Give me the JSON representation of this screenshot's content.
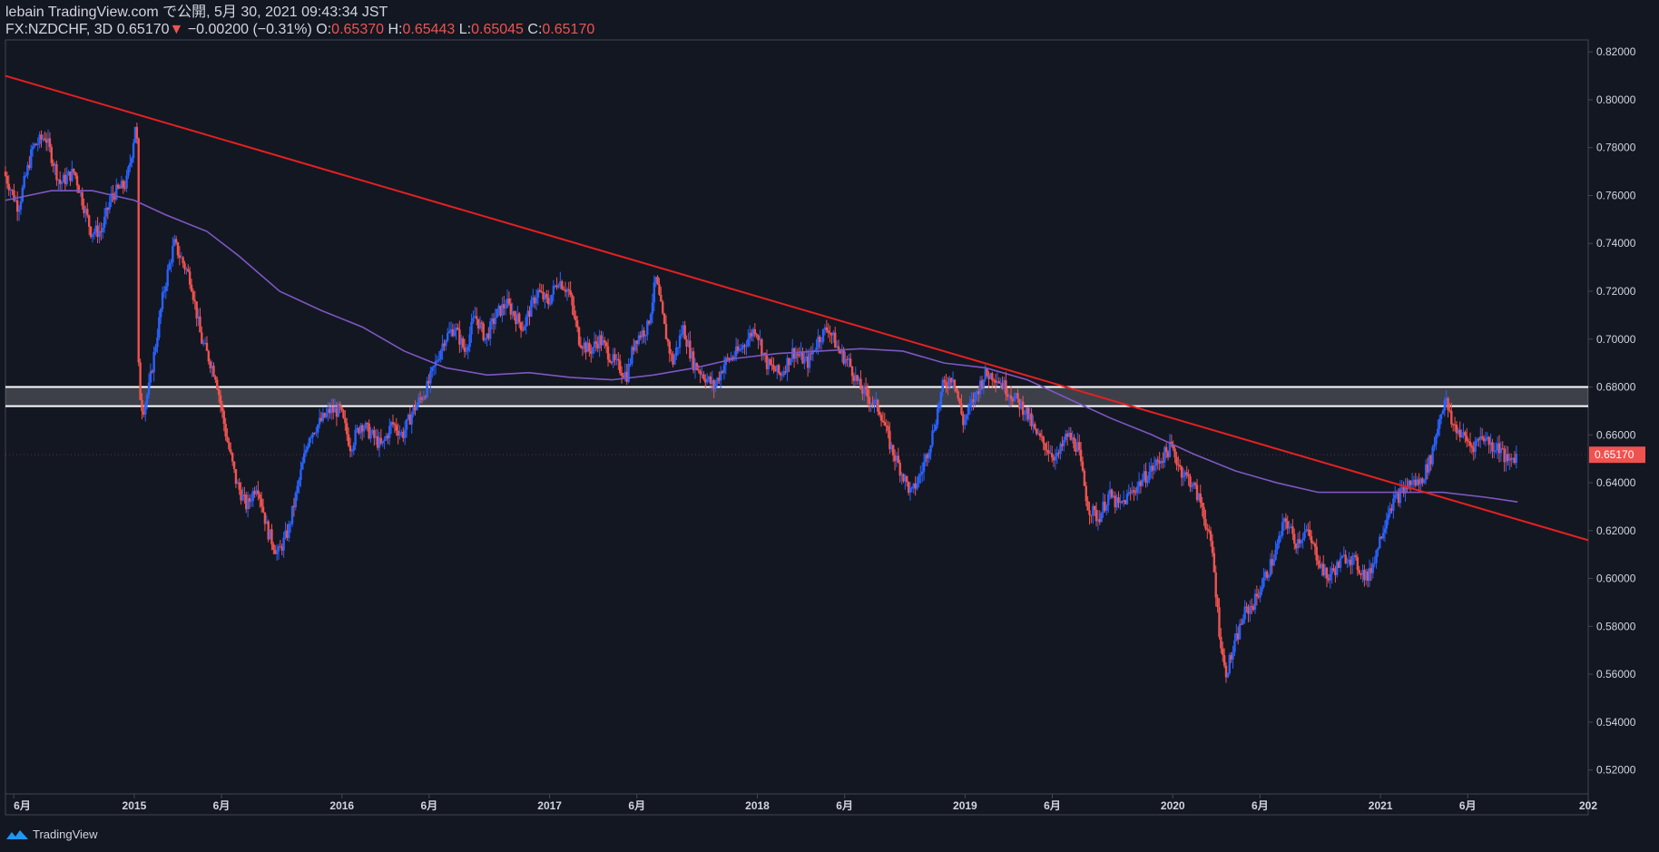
{
  "header": {
    "publish_line": "lebain TradingView.com で公開, 5月 30, 2021 09:43:34 JST",
    "symbol": "FX:NZDCHF, 3D",
    "last": "0.65170",
    "change": "−0.00200 (−0.31%)",
    "o_label": "O:",
    "o_value": "0.65370",
    "h_label": "H:",
    "h_value": "0.65443",
    "l_label": "L:",
    "l_value": "0.65045",
    "c_label": "C:",
    "c_value": "0.65170",
    "arrow": "▼"
  },
  "footer": {
    "brand": "TradingView",
    "logo_icon": "tradingview-logo-icon"
  },
  "colors": {
    "background": "#131722",
    "up": "#2962ff",
    "down": "#ef5350",
    "trendline": "#e52020",
    "ma": "#7e57c2",
    "zone": "#ffffff"
  },
  "chart_data": {
    "type": "candlestick",
    "symbol": "FX:NZDCHF",
    "interval": "3D",
    "ylim": [
      0.51,
      0.825
    ],
    "y_ticks": [
      "0.82000",
      "0.80000",
      "0.78000",
      "0.76000",
      "0.74000",
      "0.72000",
      "0.70000",
      "0.68000",
      "0.66000",
      "0.64000",
      "0.62000",
      "0.60000",
      "0.58000",
      "0.56000",
      "0.54000",
      "0.52000"
    ],
    "x_ticks": [
      {
        "label": "6月",
        "t": 2014.42
      },
      {
        "label": "2015",
        "t": 2015.0
      },
      {
        "label": "6月",
        "t": 2015.42
      },
      {
        "label": "2016",
        "t": 2016.0
      },
      {
        "label": "6月",
        "t": 2016.42
      },
      {
        "label": "2017",
        "t": 2017.0
      },
      {
        "label": "6月",
        "t": 2017.42
      },
      {
        "label": "2018",
        "t": 2018.0
      },
      {
        "label": "6月",
        "t": 2018.42
      },
      {
        "label": "2019",
        "t": 2019.0
      },
      {
        "label": "6月",
        "t": 2019.42
      },
      {
        "label": "2020",
        "t": 2020.0
      },
      {
        "label": "6月",
        "t": 2020.42
      },
      {
        "label": "2021",
        "t": 2021.0
      },
      {
        "label": "6月",
        "t": 2021.42
      },
      {
        "label": "202",
        "t": 2022.0
      }
    ],
    "xlim": [
      2014.38,
      2022.0
    ],
    "last_price_label": "0.65170",
    "last_price": 0.6517,
    "price_path": [
      [
        2014.38,
        0.77
      ],
      [
        2014.45,
        0.755
      ],
      [
        2014.52,
        0.78
      ],
      [
        2014.58,
        0.785
      ],
      [
        2014.65,
        0.765
      ],
      [
        2014.72,
        0.77
      ],
      [
        2014.8,
        0.745
      ],
      [
        2014.85,
        0.745
      ],
      [
        2014.9,
        0.76
      ],
      [
        2014.97,
        0.765
      ],
      [
        2015.0,
        0.78
      ],
      [
        2015.02,
        0.795
      ],
      [
        2015.03,
        0.68
      ],
      [
        2015.05,
        0.67
      ],
      [
        2015.08,
        0.68
      ],
      [
        2015.15,
        0.72
      ],
      [
        2015.2,
        0.74
      ],
      [
        2015.28,
        0.725
      ],
      [
        2015.33,
        0.7
      ],
      [
        2015.4,
        0.685
      ],
      [
        2015.45,
        0.66
      ],
      [
        2015.5,
        0.64
      ],
      [
        2015.55,
        0.63
      ],
      [
        2015.6,
        0.64
      ],
      [
        2015.65,
        0.62
      ],
      [
        2015.7,
        0.61
      ],
      [
        2015.75,
        0.62
      ],
      [
        2015.8,
        0.64
      ],
      [
        2015.85,
        0.66
      ],
      [
        2015.9,
        0.665
      ],
      [
        2015.95,
        0.67
      ],
      [
        2016.0,
        0.67
      ],
      [
        2016.05,
        0.655
      ],
      [
        2016.1,
        0.665
      ],
      [
        2016.15,
        0.66
      ],
      [
        2016.2,
        0.655
      ],
      [
        2016.25,
        0.665
      ],
      [
        2016.3,
        0.66
      ],
      [
        2016.35,
        0.67
      ],
      [
        2016.42,
        0.68
      ],
      [
        2016.5,
        0.7
      ],
      [
        2016.55,
        0.705
      ],
      [
        2016.6,
        0.695
      ],
      [
        2016.65,
        0.71
      ],
      [
        2016.7,
        0.7
      ],
      [
        2016.75,
        0.71
      ],
      [
        2016.8,
        0.715
      ],
      [
        2016.88,
        0.705
      ],
      [
        2016.95,
        0.72
      ],
      [
        2017.0,
        0.715
      ],
      [
        2017.05,
        0.725
      ],
      [
        2017.1,
        0.72
      ],
      [
        2017.15,
        0.7
      ],
      [
        2017.2,
        0.695
      ],
      [
        2017.25,
        0.7
      ],
      [
        2017.32,
        0.69
      ],
      [
        2017.38,
        0.685
      ],
      [
        2017.42,
        0.7
      ],
      [
        2017.48,
        0.705
      ],
      [
        2017.52,
        0.725
      ],
      [
        2017.56,
        0.705
      ],
      [
        2017.6,
        0.69
      ],
      [
        2017.65,
        0.705
      ],
      [
        2017.7,
        0.69
      ],
      [
        2017.75,
        0.685
      ],
      [
        2017.8,
        0.68
      ],
      [
        2017.85,
        0.69
      ],
      [
        2017.92,
        0.695
      ],
      [
        2018.0,
        0.705
      ],
      [
        2018.05,
        0.69
      ],
      [
        2018.12,
        0.685
      ],
      [
        2018.18,
        0.695
      ],
      [
        2018.25,
        0.69
      ],
      [
        2018.3,
        0.7
      ],
      [
        2018.35,
        0.705
      ],
      [
        2018.4,
        0.695
      ],
      [
        2018.45,
        0.69
      ],
      [
        2018.5,
        0.68
      ],
      [
        2018.55,
        0.675
      ],
      [
        2018.6,
        0.67
      ],
      [
        2018.65,
        0.655
      ],
      [
        2018.7,
        0.645
      ],
      [
        2018.75,
        0.635
      ],
      [
        2018.8,
        0.645
      ],
      [
        2018.85,
        0.66
      ],
      [
        2018.9,
        0.68
      ],
      [
        2018.95,
        0.685
      ],
      [
        2019.0,
        0.665
      ],
      [
        2019.05,
        0.675
      ],
      [
        2019.1,
        0.685
      ],
      [
        2019.15,
        0.685
      ],
      [
        2019.2,
        0.68
      ],
      [
        2019.25,
        0.675
      ],
      [
        2019.3,
        0.67
      ],
      [
        2019.35,
        0.66
      ],
      [
        2019.4,
        0.655
      ],
      [
        2019.45,
        0.65
      ],
      [
        2019.5,
        0.66
      ],
      [
        2019.55,
        0.655
      ],
      [
        2019.6,
        0.63
      ],
      [
        2019.65,
        0.625
      ],
      [
        2019.7,
        0.635
      ],
      [
        2019.75,
        0.63
      ],
      [
        2019.8,
        0.635
      ],
      [
        2019.85,
        0.64
      ],
      [
        2019.9,
        0.645
      ],
      [
        2019.95,
        0.65
      ],
      [
        2020.0,
        0.655
      ],
      [
        2020.05,
        0.645
      ],
      [
        2020.1,
        0.64
      ],
      [
        2020.15,
        0.63
      ],
      [
        2020.2,
        0.61
      ],
      [
        2020.23,
        0.58
      ],
      [
        2020.26,
        0.56
      ],
      [
        2020.3,
        0.57
      ],
      [
        2020.35,
        0.585
      ],
      [
        2020.4,
        0.59
      ],
      [
        2020.45,
        0.6
      ],
      [
        2020.5,
        0.61
      ],
      [
        2020.55,
        0.625
      ],
      [
        2020.6,
        0.615
      ],
      [
        2020.65,
        0.62
      ],
      [
        2020.7,
        0.61
      ],
      [
        2020.75,
        0.6
      ],
      [
        2020.8,
        0.605
      ],
      [
        2020.85,
        0.61
      ],
      [
        2020.9,
        0.605
      ],
      [
        2020.95,
        0.6
      ],
      [
        2021.0,
        0.615
      ],
      [
        2021.05,
        0.63
      ],
      [
        2021.1,
        0.635
      ],
      [
        2021.15,
        0.64
      ],
      [
        2021.2,
        0.64
      ],
      [
        2021.25,
        0.65
      ],
      [
        2021.3,
        0.67
      ],
      [
        2021.32,
        0.675
      ],
      [
        2021.35,
        0.665
      ],
      [
        2021.4,
        0.66
      ],
      [
        2021.45,
        0.655
      ],
      [
        2021.5,
        0.66
      ],
      [
        2021.55,
        0.655
      ],
      [
        2021.58,
        0.655
      ],
      [
        2021.62,
        0.648
      ],
      [
        2021.66,
        0.6517
      ]
    ],
    "moving_average": [
      [
        2014.38,
        0.758
      ],
      [
        2014.6,
        0.762
      ],
      [
        2014.8,
        0.762
      ],
      [
        2015.0,
        0.758
      ],
      [
        2015.15,
        0.752
      ],
      [
        2015.35,
        0.745
      ],
      [
        2015.5,
        0.735
      ],
      [
        2015.7,
        0.72
      ],
      [
        2015.9,
        0.712
      ],
      [
        2016.1,
        0.705
      ],
      [
        2016.3,
        0.695
      ],
      [
        2016.5,
        0.688
      ],
      [
        2016.7,
        0.685
      ],
      [
        2016.9,
        0.686
      ],
      [
        2017.1,
        0.684
      ],
      [
        2017.3,
        0.683
      ],
      [
        2017.5,
        0.685
      ],
      [
        2017.7,
        0.688
      ],
      [
        2017.9,
        0.692
      ],
      [
        2018.1,
        0.694
      ],
      [
        2018.3,
        0.695
      ],
      [
        2018.5,
        0.696
      ],
      [
        2018.7,
        0.695
      ],
      [
        2018.9,
        0.69
      ],
      [
        2019.1,
        0.688
      ],
      [
        2019.3,
        0.683
      ],
      [
        2019.5,
        0.675
      ],
      [
        2019.7,
        0.667
      ],
      [
        2019.9,
        0.66
      ],
      [
        2020.1,
        0.652
      ],
      [
        2020.3,
        0.645
      ],
      [
        2020.5,
        0.64
      ],
      [
        2020.7,
        0.636
      ],
      [
        2020.9,
        0.636
      ],
      [
        2021.1,
        0.636
      ],
      [
        2021.3,
        0.636
      ],
      [
        2021.5,
        0.634
      ],
      [
        2021.66,
        0.632
      ]
    ],
    "trendline": [
      [
        2014.38,
        0.81
      ],
      [
        2022.0,
        0.616
      ]
    ],
    "zone": [
      0.672,
      0.68
    ]
  }
}
